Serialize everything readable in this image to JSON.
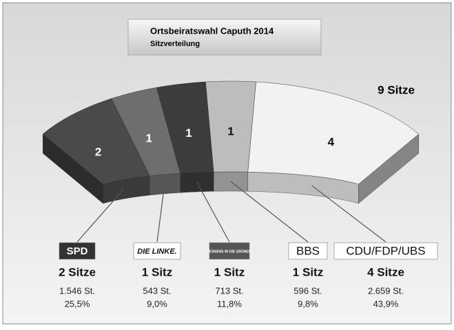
{
  "chart_data": {
    "type": "arc",
    "title": "Ortsbeiratswahl Caputh 2014",
    "subtitle": "Sitzverteilung",
    "total_label": "9 Sitze",
    "categories": [
      "SPD",
      "DIE LINKE.",
      "BÜNDNIS 90 DIE GRÜNEN",
      "BBS",
      "CDU/FDP/UBS"
    ],
    "values": [
      2,
      1,
      1,
      1,
      4
    ],
    "value_labels": [
      "2 Sitze",
      "1 Sitz",
      "1 Sitz",
      "1 Sitz",
      "4 Sitze"
    ],
    "colors": [
      "#4a4a4a",
      "#6e6e6e",
      "#3c3c3c",
      "#bdbdbd",
      "#f2f2f2"
    ],
    "votes": {
      "values": [
        1546,
        543,
        713,
        596,
        2659
      ],
      "value_labels": [
        "1.546 St.",
        "543 St.",
        "713 St.",
        "596 St.",
        "2.659 St."
      ]
    },
    "shares": {
      "values": [
        25.5,
        9.0,
        11.8,
        9.8,
        43.9
      ],
      "value_labels": [
        "25,5%",
        "9,0%",
        "11,8%",
        "9,8%",
        "43,9%"
      ]
    }
  }
}
